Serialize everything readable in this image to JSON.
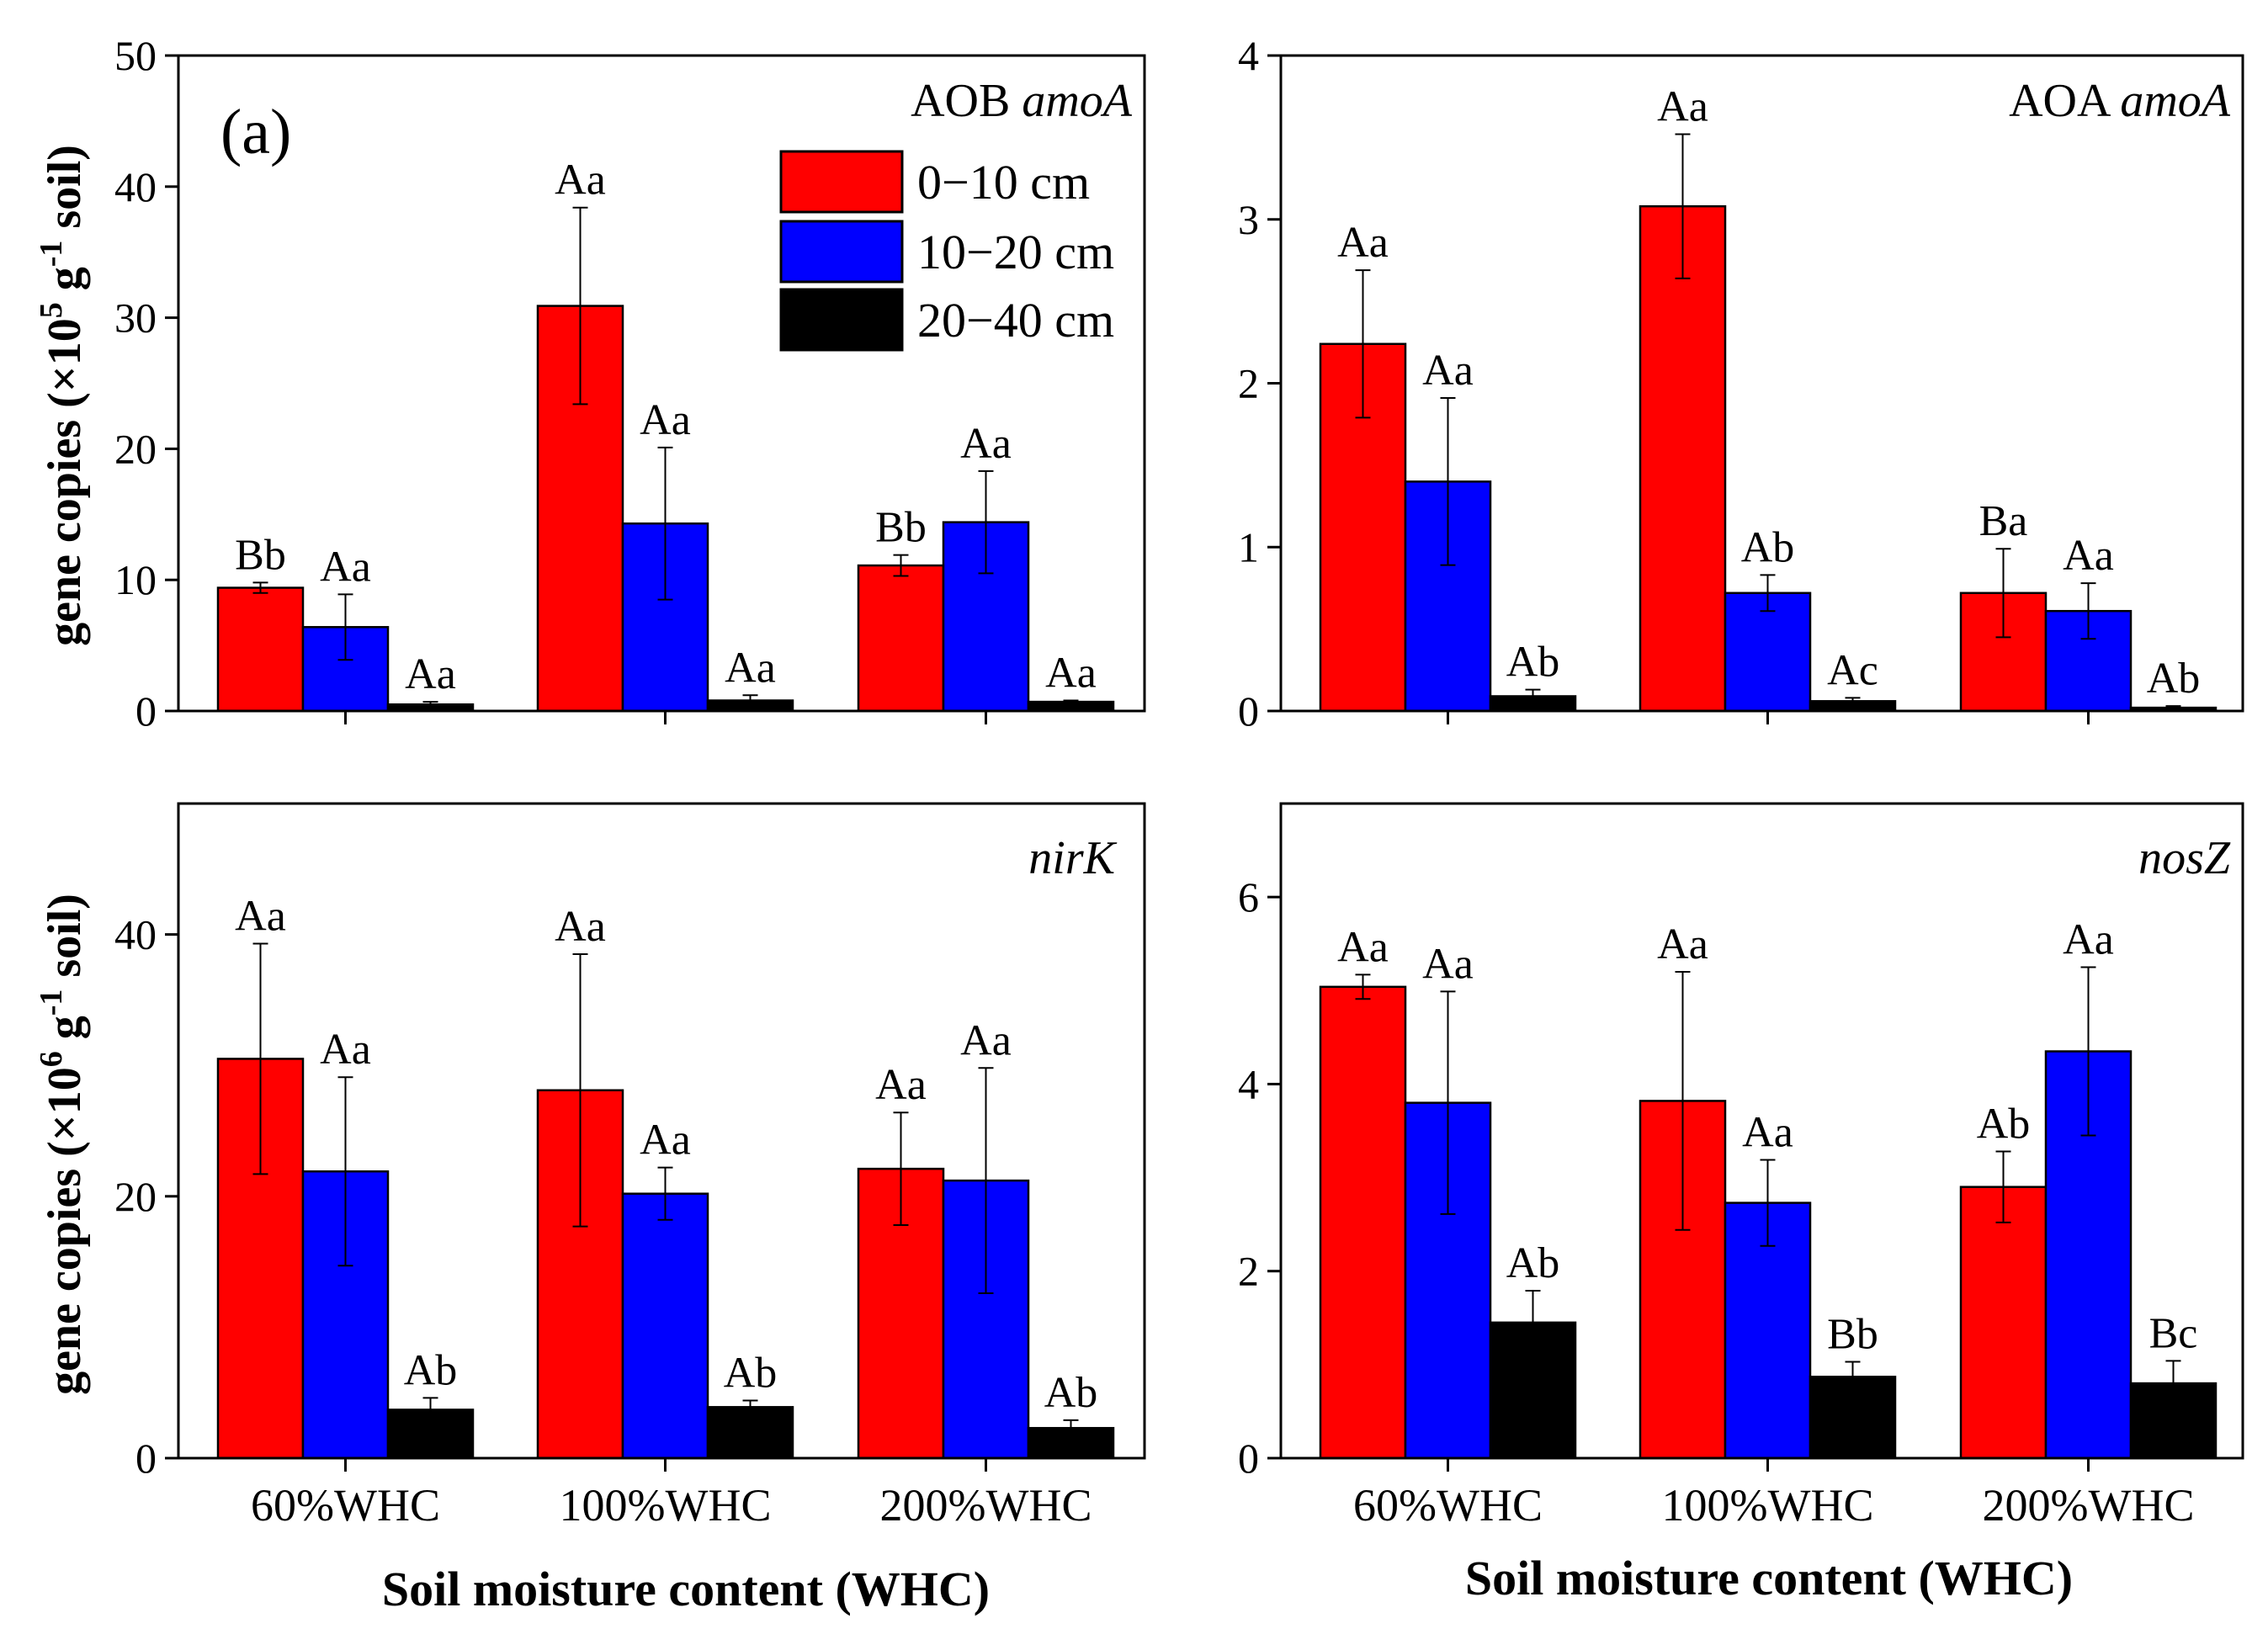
{
  "figure": {
    "xlabel": "Soil moisture content (WHC)",
    "ylabel_top": {
      "pre": "gene copies (×10",
      "sup1": "5",
      "mid": " g",
      "sup2": "-1",
      "post": " soil)"
    },
    "ylabel_bottom": {
      "pre": "gene copies (×10",
      "sup1": "6",
      "mid": " g",
      "sup2": "-1",
      "post": " soil)"
    },
    "panel_letter": "(a)",
    "legend": [
      "0−10 cm",
      "10−20 cm",
      "20−40 cm"
    ]
  },
  "colors": {
    "series": [
      "#ff0000",
      "#0000ff",
      "#000000"
    ]
  },
  "chart_data": [
    {
      "type": "bar",
      "title": "AOB amoA",
      "title_plain": "AOB ",
      "title_italic": "amoA",
      "categories": [
        "60%WHC",
        "100%WHC",
        "200%WHC"
      ],
      "ylim": [
        0,
        50
      ],
      "yticks": [
        0,
        10,
        20,
        30,
        40,
        50
      ],
      "series": [
        {
          "name": "0−10 cm",
          "values": [
            9.4,
            30.9,
            11.1
          ],
          "errors": [
            0.4,
            7.5,
            0.8
          ],
          "labels": [
            "Bb",
            "Aa",
            "Bb"
          ]
        },
        {
          "name": "10−20 cm",
          "values": [
            6.4,
            14.3,
            14.4
          ],
          "errors": [
            2.5,
            5.8,
            3.9
          ],
          "labels": [
            "Aa",
            "Aa",
            "Aa"
          ]
        },
        {
          "name": "20−40 cm",
          "values": [
            0.5,
            0.8,
            0.7
          ],
          "errors": [
            0.2,
            0.4,
            0.1
          ],
          "labels": [
            "Aa",
            "Aa",
            "Aa"
          ]
        }
      ]
    },
    {
      "type": "bar",
      "title": "AOA amoA",
      "title_plain": "AOA ",
      "title_italic": "amoA",
      "categories": [
        "60%WHC",
        "100%WHC",
        "200%WHC"
      ],
      "ylim": [
        0,
        4
      ],
      "yticks": [
        0,
        1,
        2,
        3,
        4
      ],
      "series": [
        {
          "name": "0−10 cm",
          "values": [
            2.24,
            3.08,
            0.72
          ],
          "errors": [
            0.45,
            0.44,
            0.27
          ],
          "labels": [
            "Aa",
            "Aa",
            "Ba"
          ]
        },
        {
          "name": "10−20 cm",
          "values": [
            1.4,
            0.72,
            0.61
          ],
          "errors": [
            0.51,
            0.11,
            0.17
          ],
          "labels": [
            "Aa",
            "Ab",
            "Aa"
          ]
        },
        {
          "name": "20−40 cm",
          "values": [
            0.09,
            0.06,
            0.02
          ],
          "errors": [
            0.04,
            0.02,
            0.01
          ],
          "labels": [
            "Ab",
            "Ac",
            "Ab"
          ]
        }
      ]
    },
    {
      "type": "bar",
      "title": "nirK",
      "title_plain": "",
      "title_italic": "nirK",
      "categories": [
        "60%WHC",
        "100%WHC",
        "200%WHC"
      ],
      "ylim": [
        0,
        50
      ],
      "yticks": [
        0,
        20,
        40
      ],
      "series": [
        {
          "name": "0−10 cm",
          "values": [
            30.5,
            28.1,
            22.1
          ],
          "errors": [
            8.8,
            10.4,
            4.3
          ],
          "labels": [
            "Aa",
            "Aa",
            "Aa"
          ]
        },
        {
          "name": "10−20 cm",
          "values": [
            21.9,
            20.2,
            21.2
          ],
          "errors": [
            7.2,
            2.0,
            8.6
          ],
          "labels": [
            "Aa",
            "Aa",
            "Aa"
          ]
        },
        {
          "name": "20−40 cm",
          "values": [
            3.7,
            3.9,
            2.3
          ],
          "errors": [
            0.9,
            0.5,
            0.6
          ],
          "labels": [
            "Ab",
            "Ab",
            "Ab"
          ]
        }
      ]
    },
    {
      "type": "bar",
      "title": "nosZ",
      "title_plain": "",
      "title_italic": "nosZ",
      "categories": [
        "60%WHC",
        "100%WHC",
        "200%WHC"
      ],
      "ylim": [
        0,
        7
      ],
      "yticks": [
        0,
        2,
        4,
        6
      ],
      "series": [
        {
          "name": "0−10 cm",
          "values": [
            5.04,
            3.82,
            2.9
          ],
          "errors": [
            0.13,
            1.38,
            0.38
          ],
          "labels": [
            "Aa",
            "Aa",
            "Ab"
          ]
        },
        {
          "name": "10−20 cm",
          "values": [
            3.8,
            2.73,
            4.35
          ],
          "errors": [
            1.19,
            0.46,
            0.9
          ],
          "labels": [
            "Aa",
            "Aa",
            "Aa"
          ]
        },
        {
          "name": "20−40 cm",
          "values": [
            1.45,
            0.87,
            0.8
          ],
          "errors": [
            0.34,
            0.16,
            0.24
          ],
          "labels": [
            "Ab",
            "Bb",
            "Bc"
          ]
        }
      ]
    }
  ]
}
